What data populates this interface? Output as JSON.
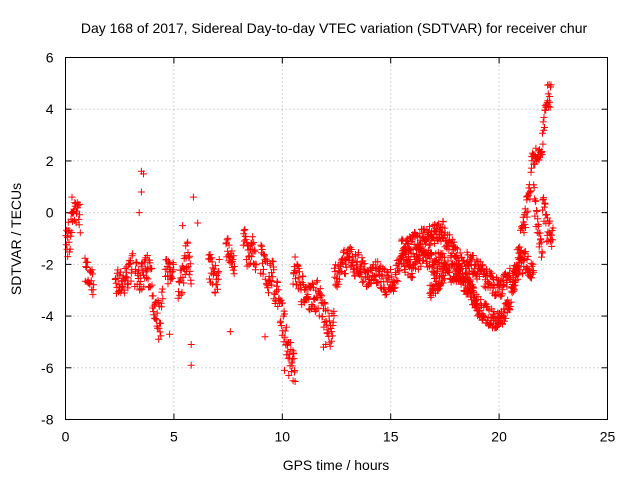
{
  "chart_data": {
    "type": "scatter",
    "title": "Day 168 of 2017, Sidereal Day-to-day VTEC variation (SDTVAR) for receiver chur",
    "xlabel": "GPS time / hours",
    "ylabel": "SDTVAR / TECUs",
    "xlim": [
      0,
      25
    ],
    "ylim": [
      -8,
      6
    ],
    "xticks": [
      0,
      5,
      10,
      15,
      20,
      25
    ],
    "yticks": [
      -8,
      -6,
      -4,
      -2,
      0,
      2,
      4,
      6
    ],
    "grid": true,
    "marker": "+",
    "series": [
      {
        "name": "SDTVAR",
        "color": "#ff0000",
        "segments": [
          {
            "x0": 0.0,
            "x1": 0.7,
            "x": [
              0.0,
              0.1,
              0.2,
              0.3,
              0.4,
              0.5,
              0.6,
              0.7
            ],
            "y": [
              -1.5,
              -0.8,
              -1.2,
              -0.2,
              0.2,
              -0.3,
              0.1,
              -0.4
            ],
            "spread": 0.55
          },
          {
            "x0": 0.9,
            "x1": 1.3,
            "x": [
              0.9,
              1.1,
              1.3
            ],
            "y": [
              -2.2,
              -2.5,
              -2.8
            ],
            "spread": 0.5
          },
          {
            "x0": 2.3,
            "x1": 3.1,
            "x": [
              2.3,
              2.6,
              2.9,
              3.1
            ],
            "y": [
              -2.6,
              -2.8,
              -2.4,
              -2.0
            ],
            "spread": 0.5
          },
          {
            "x0": 3.2,
            "x1": 4.0,
            "x": [
              3.2,
              3.5,
              3.8,
              4.0
            ],
            "y": [
              -2.3,
              -2.5,
              -2.2,
              -2.8
            ],
            "spread": 0.6
          },
          {
            "x0": 4.0,
            "x1": 4.5,
            "x": [
              4.0,
              4.2,
              4.4,
              4.5
            ],
            "y": [
              -3.2,
              -3.8,
              -4.2,
              -2.5
            ],
            "spread": 0.6
          },
          {
            "x0": 4.6,
            "x1": 5.0,
            "x": [
              4.6,
              4.8,
              5.0
            ],
            "y": [
              -2.0,
              -2.4,
              -2.2
            ],
            "spread": 0.5
          },
          {
            "x0": 5.2,
            "x1": 5.8,
            "x": [
              5.2,
              5.4,
              5.6,
              5.8
            ],
            "y": [
              -2.8,
              -2.5,
              -1.6,
              -2.2
            ],
            "spread": 0.6
          },
          {
            "x0": 6.6,
            "x1": 7.1,
            "x": [
              6.6,
              6.8,
              7.0,
              7.1
            ],
            "y": [
              -2.0,
              -2.4,
              -2.7,
              -2.2
            ],
            "spread": 0.55
          },
          {
            "x0": 7.4,
            "x1": 7.8,
            "x": [
              7.4,
              7.6,
              7.8
            ],
            "y": [
              -1.2,
              -1.8,
              -2.2
            ],
            "spread": 0.5
          },
          {
            "x0": 8.2,
            "x1": 8.8,
            "x": [
              8.2,
              8.4,
              8.6,
              8.8
            ],
            "y": [
              -0.8,
              -1.6,
              -1.4,
              -2.2
            ],
            "spread": 0.6
          },
          {
            "x0": 9.0,
            "x1": 9.6,
            "x": [
              9.0,
              9.2,
              9.4,
              9.6
            ],
            "y": [
              -1.8,
              -2.1,
              -2.6,
              -2.3
            ],
            "spread": 0.6
          },
          {
            "x0": 9.6,
            "x1": 10.2,
            "x": [
              9.6,
              9.8,
              10.0,
              10.2
            ],
            "y": [
              -2.8,
              -3.1,
              -4.2,
              -4.8
            ],
            "spread": 0.8
          },
          {
            "x0": 10.2,
            "x1": 10.6,
            "x": [
              10.2,
              10.4,
              10.6
            ],
            "y": [
              -5.2,
              -5.6,
              -6.0
            ],
            "spread": 0.6
          },
          {
            "x0": 10.5,
            "x1": 11.2,
            "x": [
              10.5,
              10.7,
              10.9,
              11.2
            ],
            "y": [
              -2.4,
              -2.2,
              -3.0,
              -3.2
            ],
            "spread": 0.6
          },
          {
            "x0": 11.2,
            "x1": 12.4,
            "x": [
              11.2,
              11.6,
              11.9,
              12.2,
              12.4
            ],
            "y": [
              -3.4,
              -3.2,
              -3.8,
              -4.6,
              -4.0
            ],
            "spread": 0.6
          },
          {
            "x0": 12.4,
            "x1": 13.5,
            "x": [
              12.4,
              12.7,
              13.0,
              13.3,
              13.5
            ],
            "y": [
              -2.5,
              -2.2,
              -1.7,
              -2.0,
              -2.3
            ],
            "spread": 0.5
          },
          {
            "x0": 13.5,
            "x1": 14.5,
            "x": [
              13.5,
              13.8,
              14.1,
              14.5
            ],
            "y": [
              -2.0,
              -2.4,
              -2.5,
              -2.2
            ],
            "spread": 0.5
          },
          {
            "x0": 14.5,
            "x1": 15.5,
            "x": [
              14.5,
              14.8,
              15.1,
              15.5
            ],
            "y": [
              -2.4,
              -2.8,
              -2.6,
              -2.0
            ],
            "spread": 0.5
          },
          {
            "x0": 15.5,
            "x1": 17.5,
            "x": [
              15.5,
              16.0,
              16.5,
              17.0,
              17.5
            ],
            "y": [
              -1.4,
              -1.2,
              -1.0,
              -0.8,
              -0.7
            ],
            "spread": 0.4
          },
          {
            "x0": 15.5,
            "x1": 17.5,
            "x": [
              15.5,
              16.0,
              16.5,
              17.0,
              17.5
            ],
            "y": [
              -1.8,
              -2.2,
              -1.6,
              -2.0,
              -1.8
            ],
            "spread": 0.4
          },
          {
            "x0": 16.8,
            "x1": 18.2,
            "x": [
              16.8,
              17.2,
              17.6,
              18.0,
              18.2
            ],
            "y": [
              -3.0,
              -2.6,
              -2.2,
              -2.4,
              -2.6
            ],
            "spread": 0.4
          },
          {
            "x0": 17.5,
            "x1": 19.0,
            "x": [
              17.5,
              18.0,
              18.5,
              19.0
            ],
            "y": [
              -1.0,
              -1.6,
              -2.4,
              -3.8
            ],
            "spread": 0.4
          },
          {
            "x0": 18.0,
            "x1": 20.5,
            "x": [
              18.0,
              18.5,
              19.0,
              19.5,
              20.0,
              20.5
            ],
            "y": [
              -2.2,
              -2.8,
              -3.6,
              -4.0,
              -4.2,
              -3.5
            ],
            "spread": 0.4
          },
          {
            "x0": 18.5,
            "x1": 20.5,
            "x": [
              18.5,
              19.0,
              19.5,
              20.0,
              20.5
            ],
            "y": [
              -1.8,
              -2.2,
              -2.6,
              -3.0,
              -2.4
            ],
            "spread": 0.4
          },
          {
            "x0": 20.5,
            "x1": 21.5,
            "x": [
              20.5,
              20.8,
              21.1,
              21.5
            ],
            "y": [
              -3.2,
              -2.0,
              -0.6,
              1.2
            ],
            "spread": 0.6
          },
          {
            "x0": 20.6,
            "x1": 21.6,
            "x": [
              20.6,
              20.9,
              21.2,
              21.6
            ],
            "y": [
              -2.6,
              -2.2,
              -1.8,
              -2.4
            ],
            "spread": 0.4
          },
          {
            "x0": 21.5,
            "x1": 22.0,
            "x": [
              21.5,
              21.7,
              22.0
            ],
            "y": [
              2.0,
              2.2,
              2.4
            ],
            "spread": 0.3
          },
          {
            "x0": 21.6,
            "x1": 22.0,
            "x": [
              21.6,
              21.8,
              22.0
            ],
            "y": [
              0.6,
              -0.6,
              -1.8
            ],
            "spread": 0.5
          },
          {
            "x0": 22.0,
            "x1": 22.4,
            "x": [
              22.0,
              22.2,
              22.4
            ],
            "y": [
              2.8,
              4.4,
              4.6
            ],
            "spread": 0.5
          },
          {
            "x0": 22.0,
            "x1": 22.5,
            "x": [
              22.0,
              22.2,
              22.5
            ],
            "y": [
              0.6,
              -0.6,
              -1.2
            ],
            "spread": 0.6
          }
        ],
        "outliers": [
          {
            "x": 3.5,
            "y": 1.6
          },
          {
            "x": 3.6,
            "y": 1.5
          },
          {
            "x": 3.5,
            "y": 0.8
          },
          {
            "x": 5.9,
            "y": 0.6
          },
          {
            "x": 5.8,
            "y": -5.1
          },
          {
            "x": 5.8,
            "y": -5.9
          },
          {
            "x": 4.8,
            "y": -4.7
          },
          {
            "x": 7.6,
            "y": -4.6
          },
          {
            "x": 10.3,
            "y": -6.3
          },
          {
            "x": 10.5,
            "y": -6.5
          },
          {
            "x": 10.1,
            "y": -6.1
          },
          {
            "x": 12.0,
            "y": -5.1
          },
          {
            "x": 9.2,
            "y": -4.8
          },
          {
            "x": 0.1,
            "y": -1.7
          },
          {
            "x": 0.3,
            "y": 0.6
          },
          {
            "x": 3.4,
            "y": 0.0
          },
          {
            "x": 4.3,
            "y": -4.9
          },
          {
            "x": 5.4,
            "y": -0.5
          },
          {
            "x": 6.1,
            "y": -0.4
          },
          {
            "x": 11.9,
            "y": -5.2
          }
        ]
      }
    ]
  }
}
